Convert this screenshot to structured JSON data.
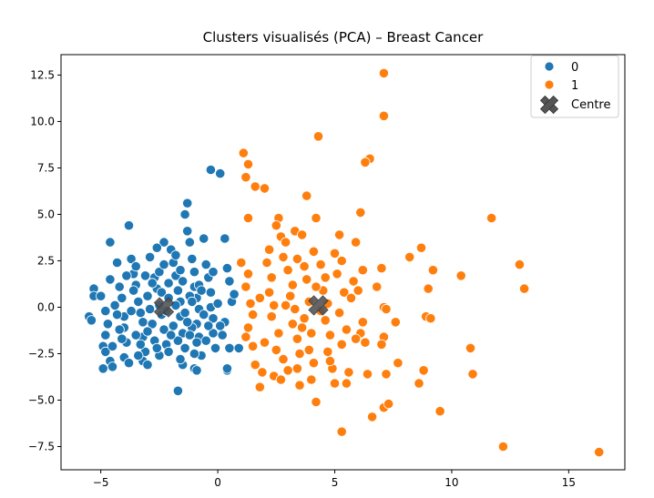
{
  "chart_data": {
    "type": "scatter",
    "title": "Clusters visualisés (PCA) – Breast Cancer",
    "xlabel": "",
    "ylabel": "",
    "xlim": [
      -6.7,
      17.4
    ],
    "ylim": [
      -8.75,
      13.6
    ],
    "xticks": [
      -5,
      0,
      5,
      10,
      15
    ],
    "yticks": [
      -7.5,
      -5.0,
      -2.5,
      0.0,
      2.5,
      5.0,
      7.5,
      10.0,
      12.5
    ],
    "xtick_labels": [
      "−5",
      "0",
      "5",
      "10",
      "15"
    ],
    "ytick_labels": [
      "−7.5",
      "−5.0",
      "−2.5",
      "0.0",
      "2.5",
      "5.0",
      "7.5",
      "10.0",
      "12.5"
    ],
    "grid": false,
    "legend_position": "top-right",
    "colors": {
      "0": "#1f77b4",
      "1": "#ff7f0e",
      "centre": "#555555"
    },
    "series": [
      {
        "name": "0",
        "points": [
          [
            -5.5,
            -0.5
          ],
          [
            -5.4,
            -0.7
          ],
          [
            -5.3,
            1.0
          ],
          [
            -5.3,
            0.6
          ],
          [
            -5.0,
            0.6
          ],
          [
            -4.8,
            -0.2
          ],
          [
            -4.8,
            -1.5
          ],
          [
            -4.9,
            -2.1
          ],
          [
            -4.8,
            -2.4
          ],
          [
            -4.9,
            -3.3
          ],
          [
            -4.6,
            -2.9
          ],
          [
            -4.5,
            -3.2
          ],
          [
            -4.6,
            3.5
          ],
          [
            -4.6,
            1.5
          ],
          [
            -4.3,
            2.4
          ],
          [
            -4.2,
            1.1
          ],
          [
            -4.1,
            0.5
          ],
          [
            -4.0,
            -0.5
          ],
          [
            -4.0,
            -1.1
          ],
          [
            -3.9,
            -1.9
          ],
          [
            -3.8,
            4.4
          ],
          [
            -3.7,
            2.6
          ],
          [
            -3.6,
            1.8
          ],
          [
            -3.5,
            1.2
          ],
          [
            -3.4,
            0.3
          ],
          [
            -3.3,
            -0.3
          ],
          [
            -3.2,
            -0.8
          ],
          [
            -3.2,
            -1.6
          ],
          [
            -3.1,
            -2.4
          ],
          [
            -3.2,
            -2.9
          ],
          [
            -3.0,
            -3.1
          ],
          [
            -2.9,
            2.7
          ],
          [
            -2.7,
            1.6
          ],
          [
            -2.6,
            1.0
          ],
          [
            -2.5,
            0.1
          ],
          [
            -2.4,
            -0.4
          ],
          [
            -2.3,
            -1.2
          ],
          [
            -2.2,
            -2.0
          ],
          [
            -2.1,
            -2.4
          ],
          [
            -2.5,
            -2.6
          ],
          [
            -2.3,
            3.5
          ],
          [
            -2.0,
            3.1
          ],
          [
            -1.9,
            2.4
          ],
          [
            -1.8,
            1.7
          ],
          [
            -1.7,
            0.9
          ],
          [
            -1.6,
            0.3
          ],
          [
            -1.6,
            -0.5
          ],
          [
            -1.5,
            -1.4
          ],
          [
            -1.4,
            -2.2
          ],
          [
            -1.5,
            -3.1
          ],
          [
            -1.7,
            -4.5
          ],
          [
            -1.3,
            5.6
          ],
          [
            -1.4,
            5.0
          ],
          [
            -1.3,
            4.1
          ],
          [
            -1.2,
            3.5
          ],
          [
            -1.1,
            2.6
          ],
          [
            -1.0,
            1.9
          ],
          [
            -1.0,
            1.1
          ],
          [
            -0.9,
            0.5
          ],
          [
            -0.8,
            -0.1
          ],
          [
            -0.9,
            -0.9
          ],
          [
            -0.8,
            -1.6
          ],
          [
            -0.7,
            -2.6
          ],
          [
            -1.0,
            -3.3
          ],
          [
            -0.9,
            -3.4
          ],
          [
            -0.6,
            3.7
          ],
          [
            -0.5,
            2.3
          ],
          [
            -0.4,
            1.6
          ],
          [
            -0.3,
            0.8
          ],
          [
            -0.3,
            0.0
          ],
          [
            -0.2,
            -0.6
          ],
          [
            -0.2,
            -1.4
          ],
          [
            -0.1,
            -2.2
          ],
          [
            -0.3,
            7.4
          ],
          [
            0.1,
            7.2
          ],
          [
            0.3,
            3.7
          ],
          [
            0.4,
            2.1
          ],
          [
            0.5,
            1.4
          ],
          [
            0.6,
            0.3
          ],
          [
            0.3,
            -0.8
          ],
          [
            0.2,
            -1.5
          ],
          [
            0.5,
            -2.2
          ],
          [
            0.4,
            -3.4
          ],
          [
            0.4,
            -3.3
          ],
          [
            0.7,
            0.7
          ],
          [
            0.9,
            -2.2
          ],
          [
            -4.4,
            0.1
          ],
          [
            -4.2,
            -1.2
          ],
          [
            -4.0,
            -2.7
          ],
          [
            -3.8,
            -3.0
          ],
          [
            -3.6,
            0.9
          ],
          [
            -3.5,
            -1.5
          ],
          [
            -3.3,
            -2.0
          ],
          [
            -3.0,
            0.6
          ],
          [
            -2.8,
            -0.9
          ],
          [
            -2.7,
            -1.8
          ],
          [
            -2.5,
            1.9
          ],
          [
            -2.4,
            0.8
          ],
          [
            -2.2,
            -0.2
          ],
          [
            -2.1,
            1.3
          ],
          [
            -1.9,
            -1.0
          ],
          [
            -1.8,
            0.1
          ],
          [
            -1.7,
            -1.8
          ],
          [
            -1.5,
            1.4
          ],
          [
            -1.4,
            -0.3
          ],
          [
            -1.2,
            0.6
          ],
          [
            -1.1,
            -1.1
          ],
          [
            -1.0,
            -2.5
          ],
          [
            -0.8,
            1.2
          ],
          [
            -0.6,
            -0.4
          ],
          [
            -0.5,
            -1.8
          ],
          [
            0.0,
            0.2
          ],
          [
            0.1,
            -1.0
          ],
          [
            -4.7,
            -0.9
          ],
          [
            -4.5,
            -2.1
          ],
          [
            -4.3,
            -0.4
          ],
          [
            -3.9,
            1.7
          ],
          [
            -3.7,
            -0.2
          ],
          [
            -3.4,
            -2.6
          ],
          [
            -3.1,
            1.7
          ],
          [
            -2.9,
            -0.1
          ],
          [
            -2.6,
            -2.2
          ],
          [
            -2.3,
            2.3
          ],
          [
            -2.0,
            -1.5
          ],
          [
            -1.8,
            2.8
          ],
          [
            -1.6,
            -2.8
          ],
          [
            -1.3,
            -0.8
          ],
          [
            -1.1,
            0.3
          ],
          [
            -0.9,
            -1.9
          ],
          [
            -0.7,
            0.9
          ],
          [
            -0.4,
            -1.0
          ],
          [
            -0.2,
            1.9
          ],
          [
            -2.6,
            3.2
          ],
          [
            -2.1,
            0.5
          ],
          [
            -3.0,
            -1.3
          ],
          [
            -3.5,
            2.2
          ],
          [
            -1.6,
            2.0
          ],
          [
            -4.1,
            -1.7
          ],
          [
            -2.8,
            1.3
          ],
          [
            -1.2,
            -1.5
          ]
        ]
      },
      {
        "name": "1",
        "points": [
          [
            1.1,
            8.3
          ],
          [
            1.3,
            7.7
          ],
          [
            1.2,
            7.0
          ],
          [
            1.6,
            6.5
          ],
          [
            2.0,
            6.4
          ],
          [
            1.3,
            4.8
          ],
          [
            1.0,
            2.4
          ],
          [
            1.3,
            1.8
          ],
          [
            1.2,
            1.1
          ],
          [
            1.4,
            0.2
          ],
          [
            1.3,
            -1.1
          ],
          [
            1.2,
            -1.6
          ],
          [
            1.5,
            -2.1
          ],
          [
            1.6,
            -3.1
          ],
          [
            1.9,
            -3.5
          ],
          [
            1.8,
            -4.3
          ],
          [
            2.1,
            2.4
          ],
          [
            2.3,
            1.6
          ],
          [
            2.2,
            0.8
          ],
          [
            2.4,
            0.1
          ],
          [
            2.3,
            -0.5
          ],
          [
            2.6,
            -1.4
          ],
          [
            2.5,
            -2.3
          ],
          [
            2.4,
            -3.7
          ],
          [
            2.7,
            -3.9
          ],
          [
            2.6,
            4.8
          ],
          [
            2.5,
            4.4
          ],
          [
            2.7,
            3.8
          ],
          [
            2.9,
            3.5
          ],
          [
            2.8,
            2.7
          ],
          [
            3.0,
            2.0
          ],
          [
            3.2,
            1.2
          ],
          [
            3.1,
            0.6
          ],
          [
            3.3,
            -0.1
          ],
          [
            3.2,
            -0.9
          ],
          [
            3.4,
            -1.7
          ],
          [
            3.5,
            -2.5
          ],
          [
            3.4,
            -3.3
          ],
          [
            3.5,
            -4.2
          ],
          [
            3.3,
            4.1
          ],
          [
            3.6,
            3.9
          ],
          [
            3.7,
            2.2
          ],
          [
            3.8,
            1.5
          ],
          [
            3.9,
            0.3
          ],
          [
            3.7,
            -0.6
          ],
          [
            4.0,
            -1.4
          ],
          [
            3.9,
            -2.3
          ],
          [
            4.1,
            -3.0
          ],
          [
            4.0,
            -3.9
          ],
          [
            4.2,
            -5.1
          ],
          [
            4.3,
            9.2
          ],
          [
            3.8,
            6.0
          ],
          [
            4.2,
            4.8
          ],
          [
            4.1,
            3.0
          ],
          [
            4.4,
            2.3
          ],
          [
            4.6,
            1.6
          ],
          [
            4.5,
            0.9
          ],
          [
            4.7,
            0.2
          ],
          [
            4.6,
            -0.7
          ],
          [
            4.8,
            -1.5
          ],
          [
            4.7,
            -2.4
          ],
          [
            4.9,
            -3.3
          ],
          [
            5.0,
            -4.1
          ],
          [
            5.2,
            3.9
          ],
          [
            5.3,
            2.5
          ],
          [
            5.1,
            1.8
          ],
          [
            5.4,
            0.8
          ],
          [
            5.2,
            -0.3
          ],
          [
            5.5,
            -1.2
          ],
          [
            5.3,
            -2.0
          ],
          [
            5.6,
            -3.5
          ],
          [
            5.5,
            -4.1
          ],
          [
            5.3,
            -6.7
          ],
          [
            5.9,
            3.5
          ],
          [
            5.8,
            1.4
          ],
          [
            6.1,
            5.1
          ],
          [
            6.2,
            2.0
          ],
          [
            6.0,
            0.9
          ],
          [
            6.2,
            -0.8
          ],
          [
            6.1,
            -1.4
          ],
          [
            6.3,
            -1.9
          ],
          [
            6.4,
            -3.6
          ],
          [
            6.5,
            8.0
          ],
          [
            6.3,
            7.8
          ],
          [
            6.6,
            -5.9
          ],
          [
            6.8,
            1.1
          ],
          [
            7.0,
            2.1
          ],
          [
            7.1,
            0.0
          ],
          [
            7.2,
            -0.1
          ],
          [
            7.1,
            -1.6
          ],
          [
            7.0,
            -2.0
          ],
          [
            7.2,
            -3.6
          ],
          [
            7.1,
            -5.4
          ],
          [
            7.3,
            -5.2
          ],
          [
            7.1,
            12.6
          ],
          [
            7.1,
            10.3
          ],
          [
            7.6,
            -0.8
          ],
          [
            7.7,
            -3.0
          ],
          [
            8.2,
            2.7
          ],
          [
            8.6,
            -4.1
          ],
          [
            8.7,
            3.2
          ],
          [
            8.9,
            -0.5
          ],
          [
            9.0,
            1.0
          ],
          [
            9.1,
            -0.6
          ],
          [
            9.2,
            2.0
          ],
          [
            8.8,
            -3.4
          ],
          [
            9.5,
            -5.6
          ],
          [
            10.4,
            1.7
          ],
          [
            10.8,
            -2.2
          ],
          [
            10.9,
            -3.6
          ],
          [
            11.7,
            4.8
          ],
          [
            12.2,
            -7.5
          ],
          [
            12.9,
            2.3
          ],
          [
            13.1,
            1.0
          ],
          [
            16.3,
            -7.8
          ],
          [
            2.0,
            -1.9
          ],
          [
            2.8,
            -2.8
          ],
          [
            3.6,
            -1.1
          ],
          [
            4.4,
            -0.2
          ],
          [
            5.7,
            0.5
          ],
          [
            2.2,
            3.1
          ],
          [
            3.0,
            -3.4
          ],
          [
            4.2,
            1.1
          ],
          [
            5.0,
            2.9
          ],
          [
            1.8,
            0.5
          ],
          [
            2.9,
            0.1
          ],
          [
            4.8,
            -2.9
          ],
          [
            3.4,
            2.6
          ],
          [
            5.9,
            -1.7
          ],
          [
            1.5,
            -0.4
          ]
        ]
      }
    ],
    "centres": [
      [
        -2.3,
        0.0
      ],
      [
        4.3,
        0.1
      ]
    ],
    "legend": [
      {
        "label": "0",
        "type": "dot",
        "color": "#1f77b4"
      },
      {
        "label": "1",
        "type": "dot",
        "color": "#ff7f0e"
      },
      {
        "label": "Centre",
        "type": "x",
        "color": "#555555"
      }
    ]
  }
}
